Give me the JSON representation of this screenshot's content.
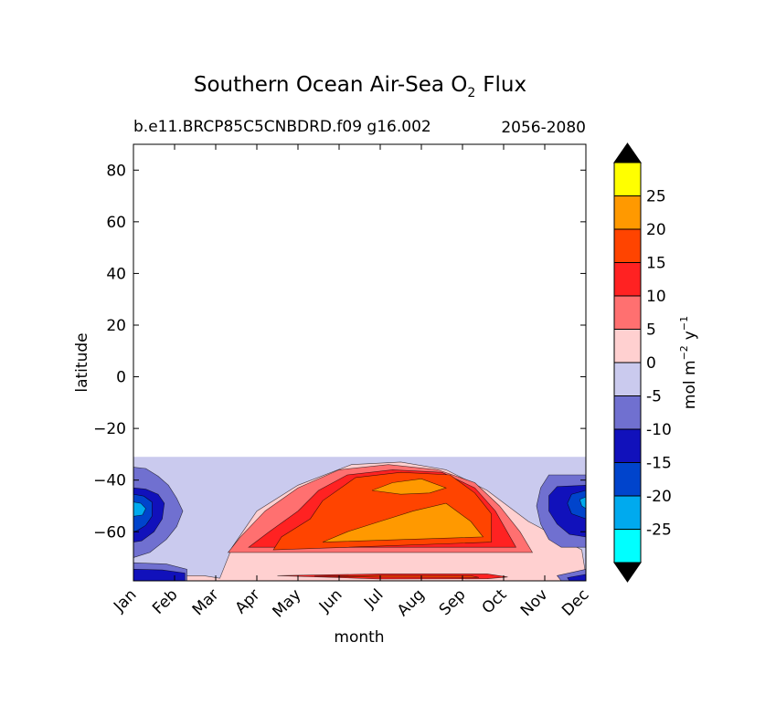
{
  "chart_data": {
    "type": "contourf",
    "title": "Southern Ocean Air-Sea O",
    "title_subscript": "2",
    "title_suffix": "Flux",
    "subtitle_left": "b.e11.BRCP85C5CNBDRD.f09 g16.002",
    "subtitle_right": "2056-2080",
    "xlabel": "month",
    "ylabel": "latitude",
    "x_ticks": [
      "Jan",
      "Feb",
      "Mar",
      "Apr",
      "May",
      "Jun",
      "Jul",
      "Aug",
      "Sep",
      "Oct",
      "Nov",
      "Dec"
    ],
    "ylim": [
      -79,
      90
    ],
    "y_ticks": [
      80,
      60,
      40,
      20,
      0,
      -20,
      -40,
      -60
    ],
    "y_tick_labels": [
      "80",
      "60",
      "40",
      "20",
      "0",
      "−20",
      "−40",
      "−60"
    ],
    "data_lat_range": [
      -79,
      -31
    ],
    "colorbar": {
      "label_main": "mol m",
      "label_exp1": "−2",
      "label_mid": "y",
      "label_exp2": "−1",
      "levels": [
        -30,
        -25,
        -20,
        -15,
        -10,
        -5,
        0,
        5,
        10,
        15,
        20,
        25,
        30
      ],
      "tick_labels": [
        "-25",
        "-20",
        "-15",
        "-10",
        "-5",
        "0",
        "5",
        "10",
        "15",
        "20",
        "25"
      ],
      "colors": [
        "#00ffff",
        "#00aaee",
        "#0044cc",
        "#1111bb",
        "#7070d0",
        "#cacaee",
        "#ffd0d0",
        "#ff7070",
        "#ff2222",
        "#ff4400",
        "#ff9900",
        "#ffff00"
      ],
      "under_color": "#000000",
      "over_color": "#000000"
    },
    "contour_regions": [
      {
        "level": 0,
        "x": [
          0,
          0.2,
          1.7,
          2.1,
          2.4,
          3.0,
          4.0,
          5.3,
          6.5,
          7.6,
          8.6,
          9.6,
          10.9,
          11.0,
          11.0,
          0
        ],
        "y": [
          -79,
          -77,
          -77,
          -78,
          -66,
          -52,
          -42,
          -34,
          -33,
          -36,
          -44,
          -56,
          -67,
          -77,
          -79,
          -79
        ]
      },
      {
        "level": 5,
        "x": [
          2.3,
          2.6,
          3.2,
          4.0,
          5.0,
          6.2,
          7.4,
          8.3,
          8.9,
          9.4,
          9.7,
          2.3
        ],
        "y": [
          -68,
          -62,
          -52,
          -43,
          -36,
          -34,
          -36,
          -41,
          -50,
          -60,
          -68,
          -68
        ]
      },
      {
        "level": 10,
        "x": [
          2.8,
          3.3,
          4.0,
          4.5,
          5.2,
          6.3,
          7.5,
          8.3,
          8.8,
          9.3,
          2.8
        ],
        "y": [
          -66,
          -60,
          -52,
          -44,
          -38,
          -36,
          -37,
          -43,
          -52,
          -66,
          -66
        ]
      },
      {
        "level": 15,
        "x": [
          3.4,
          3.6,
          4.3,
          4.6,
          5.4,
          6.5,
          7.7,
          8.3,
          8.7,
          8.7,
          3.4
        ],
        "y": [
          -67,
          -62,
          -55,
          -48,
          -39,
          -37,
          -38,
          -45,
          -53,
          -64,
          -67
        ]
      },
      {
        "level": 20,
        "x": [
          4.6,
          5.2,
          6.0,
          6.8,
          7.6,
          8.2,
          8.5,
          4.6
        ],
        "y": [
          -64,
          -60,
          -56,
          -52,
          -49,
          -56,
          -62,
          -64
        ]
      },
      {
        "level": 20,
        "x": [
          5.8,
          6.3,
          7.0,
          7.6,
          7.2,
          6.5,
          5.8
        ],
        "y": [
          -44,
          -41,
          -39.5,
          -43,
          -45,
          -45.5,
          -44
        ]
      },
      {
        "level": 10,
        "x": [
          3.5,
          6.0,
          8.6,
          9.1,
          8.6,
          6.0,
          3.5
        ],
        "y": [
          -77,
          -76.3,
          -76.3,
          -77.5,
          -78.2,
          -78.3,
          -77
        ]
      },
      {
        "level": 15,
        "x": [
          4.4,
          6.0,
          8.2,
          8.4,
          6.0,
          4.4
        ],
        "y": [
          -77.2,
          -76.9,
          -77.0,
          -77.7,
          -77.6,
          -77.2
        ]
      },
      {
        "level": -10,
        "x": [
          0,
          0.3,
          0.6,
          0.85,
          1.05,
          1.2,
          1.05,
          0.8,
          0.4,
          0
        ],
        "y": [
          -35,
          -35.5,
          -38.5,
          -42,
          -47,
          -52,
          -58,
          -63,
          -68,
          -70
        ]
      },
      {
        "level": -15,
        "x": [
          0,
          0.3,
          0.6,
          0.75,
          0.7,
          0.5,
          0.2,
          0
        ],
        "y": [
          -43,
          -43.5,
          -45.5,
          -49,
          -55,
          -60,
          -63.5,
          -64
        ]
      },
      {
        "level": -20,
        "x": [
          0,
          0.25,
          0.45,
          0.45,
          0.3,
          0.1,
          0
        ],
        "y": [
          -45.5,
          -46.2,
          -48.5,
          -54,
          -57.5,
          -59.5,
          -60
        ]
      },
      {
        "level": -25,
        "x": [
          0,
          0.18,
          0.3,
          0.22,
          0
        ],
        "y": [
          -48.5,
          -49,
          -51,
          -53.5,
          -54
        ]
      },
      {
        "level": -10,
        "x": [
          11,
          10.1,
          9.9,
          9.8,
          9.9,
          10.1,
          10.4,
          11
        ],
        "y": [
          -38,
          -38,
          -43,
          -50,
          -57,
          -63,
          -66,
          -66
        ]
      },
      {
        "level": -15,
        "x": [
          11,
          10.3,
          10.1,
          10.1,
          10.3,
          10.6,
          11
        ],
        "y": [
          -42,
          -42.5,
          -46,
          -52,
          -57,
          -61,
          -62
        ]
      },
      {
        "level": -20,
        "x": [
          11,
          10.65,
          10.55,
          10.65,
          11
        ],
        "y": [
          -44,
          -45.5,
          -49,
          -53,
          -55
        ]
      },
      {
        "level": -25,
        "x": [
          11,
          10.85,
          10.9,
          11
        ],
        "y": [
          -46.5,
          -47.5,
          -50,
          -51
        ]
      },
      {
        "level": -10,
        "x": [
          0,
          0.8,
          1.3,
          1.3,
          0
        ],
        "y": [
          -72,
          -72.5,
          -74.5,
          -79,
          -79
        ]
      },
      {
        "level": -15,
        "x": [
          0,
          0.7,
          1.25,
          1.25,
          0
        ],
        "y": [
          -74.5,
          -74.8,
          -76,
          -79,
          -79
        ]
      },
      {
        "level": -10,
        "x": [
          10.4,
          11,
          11,
          10.3
        ],
        "y": [
          -79,
          -79,
          -74.5,
          -77
        ]
      },
      {
        "level": -15,
        "x": [
          10.6,
          11,
          11,
          10.55
        ],
        "y": [
          -79,
          -79,
          -76.5,
          -77.8
        ]
      }
    ]
  }
}
